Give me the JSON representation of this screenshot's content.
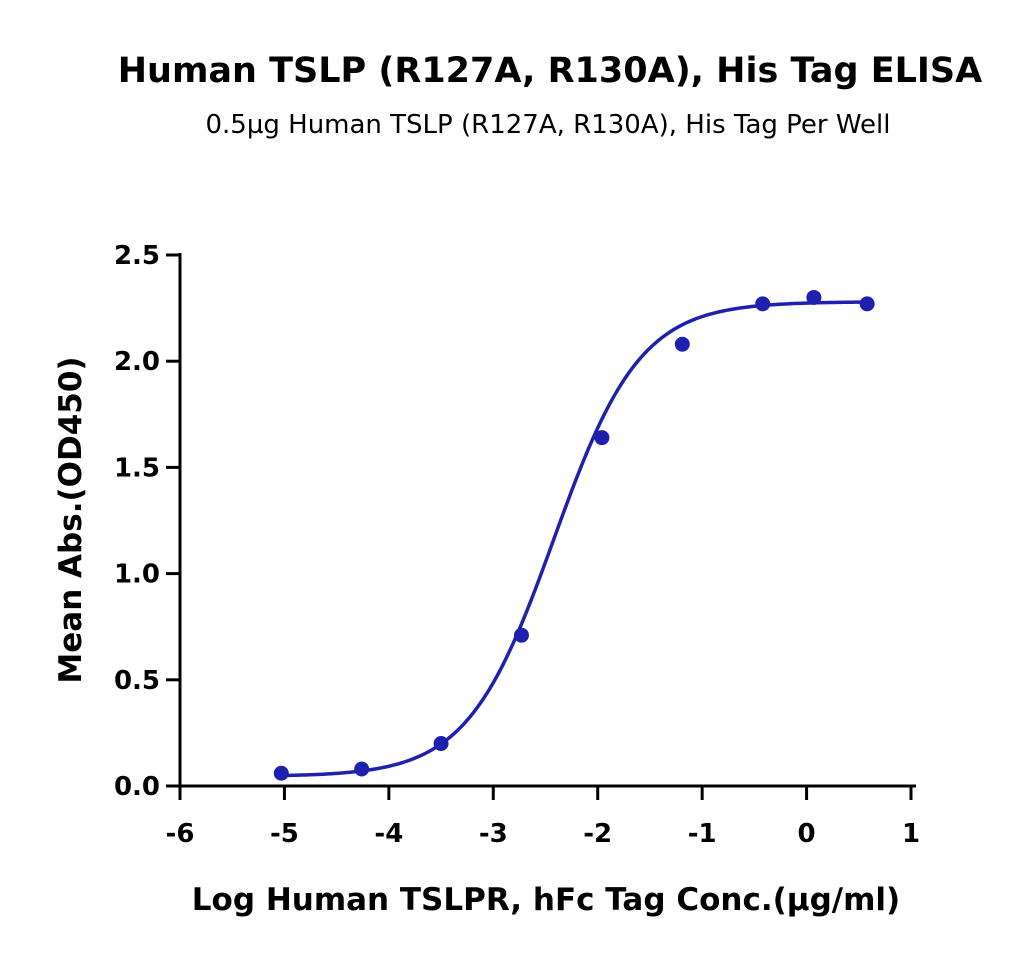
{
  "chart_data": {
    "type": "scatter",
    "title": "Human TSLP (R127A, R130A), His Tag ELISA",
    "subtitle": "0.5µg Human TSLP (R127A, R130A), His Tag Per Well",
    "xlabel": "Log Human TSLPR, hFc Tag Conc.(µg/ml)",
    "ylabel": "Mean Abs.(OD450)",
    "xlim": [
      -6,
      1
    ],
    "ylim": [
      0,
      2.5
    ],
    "x_ticks": [
      "-6",
      "-5",
      "-4",
      "-3",
      "-2",
      "-1",
      "0",
      "1"
    ],
    "y_ticks": [
      "0.0",
      "0.5",
      "1.0",
      "1.5",
      "2.0",
      "2.5"
    ],
    "grid": false,
    "series": [
      {
        "color": "#2020b0",
        "x": [
          -5.03,
          -4.26,
          -3.5,
          -2.73,
          -1.96,
          -1.19,
          -0.42,
          0.07,
          0.58
        ],
        "y": [
          0.06,
          0.08,
          0.2,
          0.71,
          1.64,
          2.08,
          2.27,
          2.3,
          2.27
        ],
        "fit": {
          "bottom": 0.045,
          "top": 2.28,
          "logEC50": -2.42,
          "hill": 1.05
        }
      }
    ]
  }
}
